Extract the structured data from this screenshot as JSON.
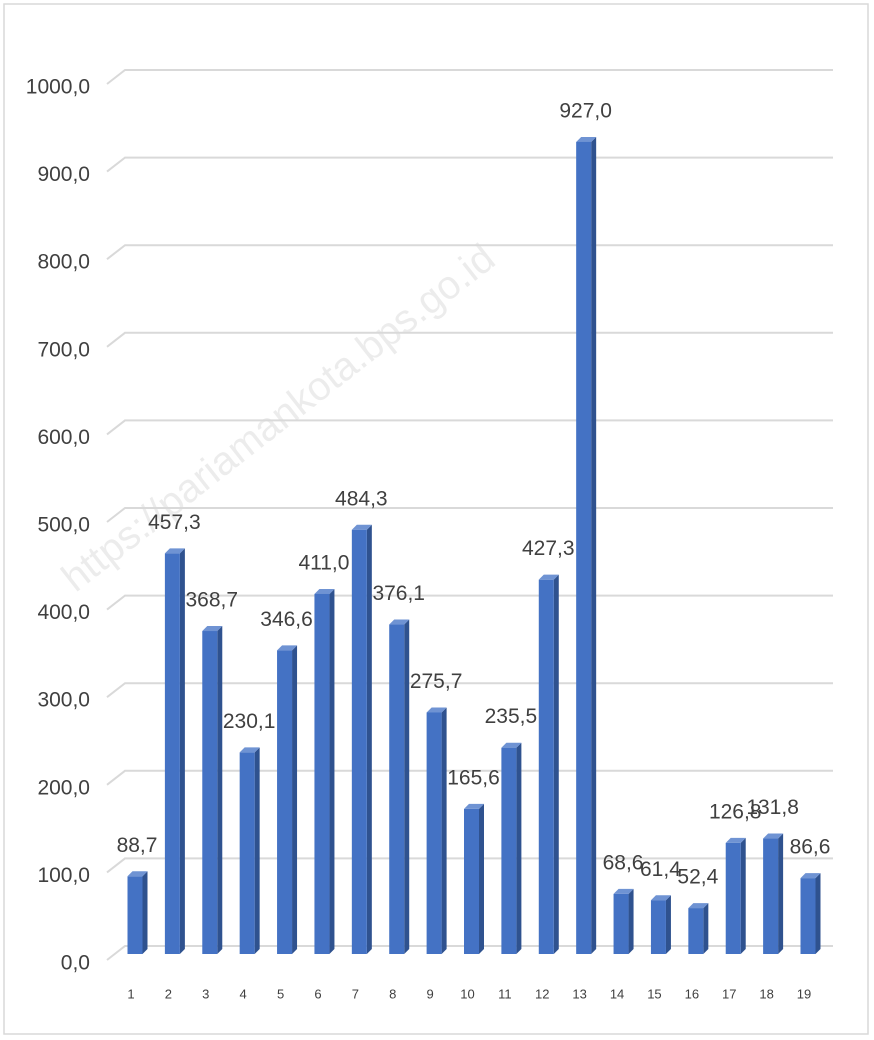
{
  "chart_data": {
    "type": "bar",
    "watermark": "https://pariamankota.bps.go.id",
    "categories": [
      "1",
      "2",
      "3",
      "4",
      "5",
      "6",
      "7",
      "8",
      "9",
      "10",
      "11",
      "12",
      "13",
      "14",
      "15",
      "16",
      "17",
      "18",
      "19"
    ],
    "values": [
      88.7,
      457.3,
      368.7,
      230.1,
      346.6,
      411.0,
      484.3,
      376.1,
      275.7,
      165.6,
      235.5,
      427.3,
      927.0,
      68.6,
      61.4,
      52.4,
      126.8,
      131.8,
      86.6
    ],
    "value_labels": [
      "88,7",
      "457,3",
      "368,7",
      "230,1",
      "346,6",
      "411,0",
      "484,3",
      "376,1",
      "275,7",
      "165,6",
      "235,5",
      "427,3",
      "927,0",
      "68,6",
      "61,4",
      "52,4",
      "126,8",
      "131,8",
      "86,6"
    ],
    "color": "#4472c4",
    "ylim": [
      0,
      1000
    ],
    "yticks": [
      {
        "value": 0,
        "label": "0,0"
      },
      {
        "value": 100,
        "label": "100,0"
      },
      {
        "value": 200,
        "label": "200,0"
      },
      {
        "value": 300,
        "label": "300,0"
      },
      {
        "value": 400,
        "label": "400,0"
      },
      {
        "value": 500,
        "label": "500,0"
      },
      {
        "value": 600,
        "label": "600,0"
      },
      {
        "value": 700,
        "label": "700,0"
      },
      {
        "value": 800,
        "label": "800,0"
      },
      {
        "value": 900,
        "label": "900,0"
      },
      {
        "value": 1000,
        "label": "1000,0"
      }
    ],
    "grid": true
  }
}
